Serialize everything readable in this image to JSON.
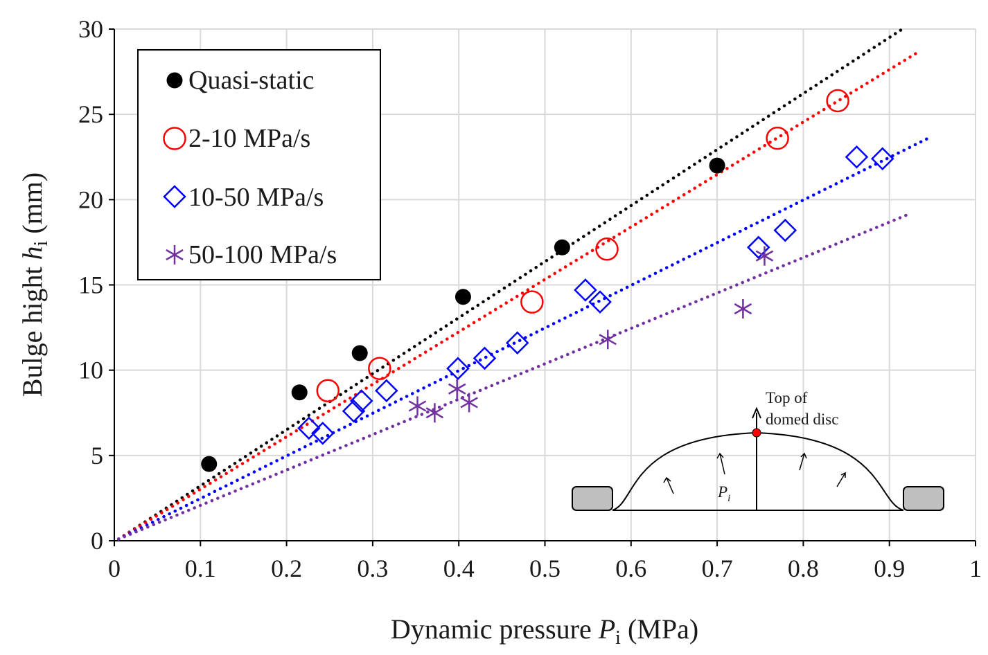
{
  "chart_data": {
    "type": "scatter",
    "xlabel_main": "Dynamic pressure ",
    "xlabel_var": "P",
    "xlabel_sub": "i",
    "xlabel_unit": " (MPa)",
    "ylabel_main": "Bulge hight ",
    "ylabel_var": "h",
    "ylabel_sub": "i",
    "ylabel_unit": " (mm)",
    "xlim": [
      0,
      1
    ],
    "ylim": [
      0,
      30
    ],
    "xticks": [
      "0",
      "0.1",
      "0.2",
      "0.3",
      "0.4",
      "0.5",
      "0.6",
      "0.7",
      "0.8",
      "0.9",
      "1"
    ],
    "yticks": [
      "0",
      "5",
      "10",
      "15",
      "20",
      "25",
      "30"
    ],
    "grid": true,
    "legend_position": "top-left",
    "series": [
      {
        "name": "Quasi-static",
        "marker": "filled-circle",
        "color": "#000000",
        "trend_color": "#000000",
        "trend": [
          [
            0.005,
            0.1
          ],
          [
            0.915,
            30.0
          ]
        ],
        "points": [
          [
            0.11,
            4.5
          ],
          [
            0.215,
            8.7
          ],
          [
            0.285,
            11.0
          ],
          [
            0.405,
            14.3
          ],
          [
            0.52,
            17.2
          ],
          [
            0.7,
            22.0
          ]
        ]
      },
      {
        "name": "2-10 MPa/s",
        "marker": "open-circle",
        "color": "#ff0000",
        "trend_color": "#ff0000",
        "trend": [
          [
            0.005,
            0.1
          ],
          [
            0.935,
            28.7
          ]
        ],
        "points": [
          [
            0.248,
            8.8
          ],
          [
            0.308,
            10.1
          ],
          [
            0.485,
            14.0
          ],
          [
            0.572,
            17.1
          ],
          [
            0.77,
            23.6
          ],
          [
            0.84,
            25.8
          ]
        ]
      },
      {
        "name": "10-50 MPa/s",
        "marker": "open-diamond",
        "color": "#0000ff",
        "trend_color": "#0000ff",
        "trend": [
          [
            0.005,
            0.1
          ],
          [
            0.945,
            23.6
          ]
        ],
        "points": [
          [
            0.226,
            6.6
          ],
          [
            0.242,
            6.3
          ],
          [
            0.278,
            7.6
          ],
          [
            0.287,
            8.2
          ],
          [
            0.316,
            8.8
          ],
          [
            0.399,
            10.1
          ],
          [
            0.43,
            10.7
          ],
          [
            0.468,
            11.6
          ],
          [
            0.547,
            14.7
          ],
          [
            0.564,
            14.0
          ],
          [
            0.748,
            17.2
          ],
          [
            0.779,
            18.2
          ],
          [
            0.862,
            22.5
          ],
          [
            0.892,
            22.4
          ]
        ]
      },
      {
        "name": "50-100 MPa/s",
        "marker": "asterisk",
        "color": "#7030a0",
        "trend_color": "#7030a0",
        "trend": [
          [
            0.005,
            0.1
          ],
          [
            0.925,
            19.2
          ]
        ],
        "points": [
          [
            0.352,
            7.9
          ],
          [
            0.372,
            7.5
          ],
          [
            0.398,
            8.9
          ],
          [
            0.412,
            8.1
          ],
          [
            0.573,
            11.8
          ],
          [
            0.73,
            13.6
          ],
          [
            0.755,
            16.7
          ]
        ]
      }
    ],
    "inset": {
      "label_top_line1": "Top of",
      "label_top_line2": "domed disc",
      "label_pressure_var": "P",
      "label_pressure_sub": "i",
      "dot_color": "#ff0000"
    }
  }
}
